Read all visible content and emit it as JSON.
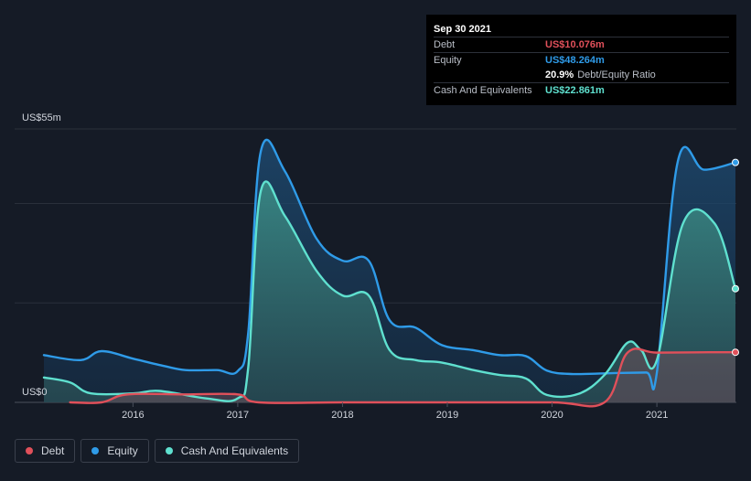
{
  "tooltip": {
    "date": "Sep 30 2021",
    "rows": [
      {
        "label": "Debt",
        "value": "US$10.076m",
        "color": "#e0505a"
      },
      {
        "label": "Equity",
        "value": "US$48.264m",
        "color": "#2f9be8"
      },
      {
        "label": "",
        "value": "20.9%",
        "suffix": "Debt/Equity Ratio",
        "color": "#ffffff"
      },
      {
        "label": "Cash And Equivalents",
        "value": "US$22.861m",
        "color": "#5fe0cf"
      }
    ]
  },
  "legend": [
    {
      "label": "Debt",
      "color": "#e0505a"
    },
    {
      "label": "Equity",
      "color": "#2f9be8"
    },
    {
      "label": "Cash And Equivalents",
      "color": "#5fe0cf"
    }
  ],
  "chart_data": {
    "type": "area",
    "ylabel_top": "US$55m",
    "ylabel_bottom": "US$0",
    "ylim": [
      0,
      55
    ],
    "xlim": [
      2015.15,
      2021.75
    ],
    "x_ticks": [
      {
        "x": 2016,
        "label": "2016"
      },
      {
        "x": 2017,
        "label": "2017"
      },
      {
        "x": 2018,
        "label": "2018"
      },
      {
        "x": 2019,
        "label": "2019"
      },
      {
        "x": 2020,
        "label": "2020"
      },
      {
        "x": 2021,
        "label": "2021"
      }
    ],
    "series": [
      {
        "name": "Equity",
        "color": "#2f9be8",
        "points": [
          [
            2015.15,
            9.5
          ],
          [
            2015.5,
            8.5
          ],
          [
            2015.7,
            10.3
          ],
          [
            2016.0,
            8.8
          ],
          [
            2016.3,
            7.3
          ],
          [
            2016.5,
            6.5
          ],
          [
            2016.8,
            6.5
          ],
          [
            2017.0,
            6.3
          ],
          [
            2017.1,
            14.0
          ],
          [
            2017.22,
            50.5
          ],
          [
            2017.45,
            46.5
          ],
          [
            2017.75,
            33.0
          ],
          [
            2018.0,
            28.5
          ],
          [
            2018.25,
            28.5
          ],
          [
            2018.45,
            16.5
          ],
          [
            2018.7,
            15.0
          ],
          [
            2018.95,
            11.5
          ],
          [
            2019.25,
            10.5
          ],
          [
            2019.5,
            9.5
          ],
          [
            2019.75,
            9.3
          ],
          [
            2019.95,
            6.4
          ],
          [
            2020.2,
            5.7
          ],
          [
            2020.6,
            5.9
          ],
          [
            2020.9,
            6.0
          ],
          [
            2021.0,
            6.0
          ],
          [
            2021.2,
            48.5
          ],
          [
            2021.45,
            46.8
          ],
          [
            2021.75,
            48.264
          ]
        ]
      },
      {
        "name": "Cash And Equivalents",
        "color": "#5fe0cf",
        "points": [
          [
            2015.15,
            5.0
          ],
          [
            2015.4,
            4.0
          ],
          [
            2015.6,
            1.8
          ],
          [
            2016.0,
            1.8
          ],
          [
            2016.25,
            2.3
          ],
          [
            2016.7,
            0.8
          ],
          [
            2017.0,
            0.8
          ],
          [
            2017.1,
            7.0
          ],
          [
            2017.22,
            42.5
          ],
          [
            2017.45,
            37.5
          ],
          [
            2017.75,
            26.5
          ],
          [
            2018.0,
            21.5
          ],
          [
            2018.25,
            21.5
          ],
          [
            2018.45,
            10.5
          ],
          [
            2018.7,
            8.5
          ],
          [
            2018.95,
            8.0
          ],
          [
            2019.25,
            6.5
          ],
          [
            2019.5,
            5.5
          ],
          [
            2019.75,
            4.8
          ],
          [
            2019.95,
            1.5
          ],
          [
            2020.25,
            1.7
          ],
          [
            2020.5,
            5.5
          ],
          [
            2020.72,
            12.0
          ],
          [
            2020.85,
            10.5
          ],
          [
            2021.0,
            8.5
          ],
          [
            2021.25,
            36.0
          ],
          [
            2021.55,
            36.0
          ],
          [
            2021.75,
            22.861
          ]
        ]
      },
      {
        "name": "Debt",
        "color": "#e0505a",
        "points": [
          [
            2015.4,
            0.0
          ],
          [
            2015.7,
            0.0
          ],
          [
            2015.95,
            1.6
          ],
          [
            2016.5,
            1.6
          ],
          [
            2017.0,
            1.6
          ],
          [
            2017.2,
            0.0
          ],
          [
            2018.0,
            0.0
          ],
          [
            2019.0,
            0.0
          ],
          [
            2020.0,
            0.0
          ],
          [
            2020.5,
            0.0
          ],
          [
            2020.72,
            10.0
          ],
          [
            2021.0,
            10.0
          ],
          [
            2021.5,
            10.076
          ],
          [
            2021.75,
            10.076
          ]
        ]
      }
    ],
    "grid": true,
    "legend_position": "bottom-left"
  }
}
